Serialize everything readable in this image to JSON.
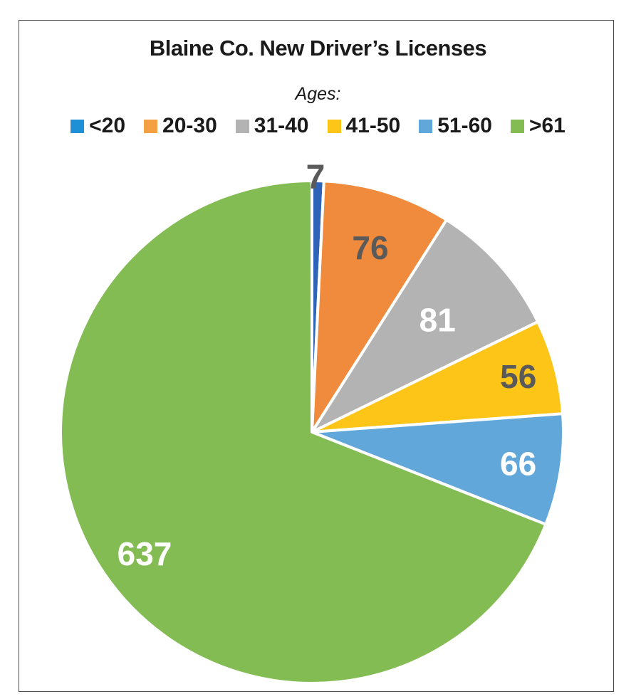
{
  "chart_data": {
    "type": "pie",
    "title": "Blaine Co. New Driver’s Licenses",
    "subtitle": "Ages:",
    "legend_position": "top",
    "categories": [
      "<20",
      "20-30",
      "31-40",
      "41-50",
      "51-60",
      ">61"
    ],
    "values": [
      7,
      76,
      81,
      56,
      66,
      637
    ],
    "colors": [
      "#2e63b8",
      "#f08a3c",
      "#b3b3b3",
      "#fcc518",
      "#62a7da",
      "#84bc54"
    ],
    "legend_colors": [
      "#1f8fd6",
      "#f5a043",
      "#b3b3b3",
      "#fcc518",
      "#62a7da",
      "#84bc54"
    ],
    "label_colors": [
      "#5a5a5a",
      "#5a5a5a",
      "#ffffff",
      "#5a5a5a",
      "#ffffff",
      "#ffffff"
    ],
    "start_angle_deg": 0,
    "direction": "clockwise"
  }
}
